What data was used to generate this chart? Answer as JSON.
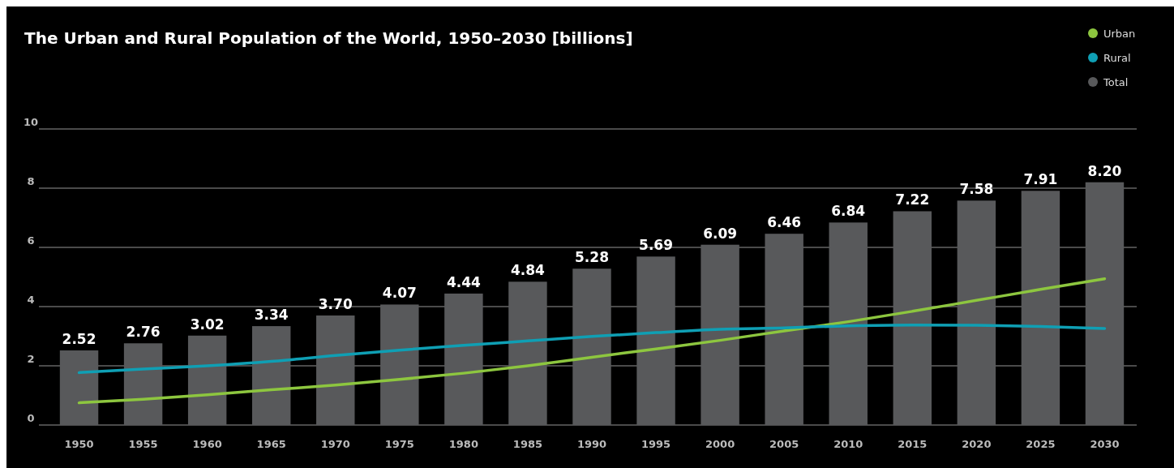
{
  "chart_data": {
    "type": "bar",
    "title": "The Urban and Rural Population of the World, 1950–2030 [billions]",
    "categories": [
      "1950",
      "1955",
      "1960",
      "1965",
      "1970",
      "1975",
      "1980",
      "1985",
      "1990",
      "1995",
      "2000",
      "2005",
      "2010",
      "2015",
      "2020",
      "2025",
      "2030"
    ],
    "series": [
      {
        "name": "Urban",
        "type": "line",
        "color": "#8dc63f",
        "values": [
          0.75,
          0.87,
          1.02,
          1.19,
          1.35,
          1.54,
          1.75,
          2.0,
          2.29,
          2.57,
          2.86,
          3.18,
          3.49,
          3.84,
          4.21,
          4.58,
          4.94
        ]
      },
      {
        "name": "Rural",
        "type": "line",
        "color": "#0f9fb4",
        "values": [
          1.77,
          1.89,
          2.0,
          2.15,
          2.35,
          2.53,
          2.69,
          2.84,
          2.99,
          3.12,
          3.23,
          3.28,
          3.35,
          3.38,
          3.37,
          3.33,
          3.26
        ]
      },
      {
        "name": "Total",
        "color": "#58595b",
        "values": [
          2.52,
          2.76,
          3.02,
          3.34,
          3.7,
          4.07,
          4.44,
          4.84,
          5.28,
          5.69,
          6.09,
          6.46,
          6.84,
          7.22,
          7.58,
          7.91,
          8.2
        ],
        "value_labels": [
          "2.52",
          "2.76",
          "3.02",
          "3.34",
          "3.70",
          "4.07",
          "4.44",
          "4.84",
          "5.28",
          "5.69",
          "6.09",
          "6.46",
          "6.84",
          "7.22",
          "7.58",
          "7.91",
          "8.20"
        ]
      }
    ],
    "ylim": [
      0,
      10
    ],
    "yticks": [
      0,
      2,
      4,
      6,
      8,
      10
    ],
    "grid": "y",
    "legend": "top right",
    "marker": "none"
  }
}
